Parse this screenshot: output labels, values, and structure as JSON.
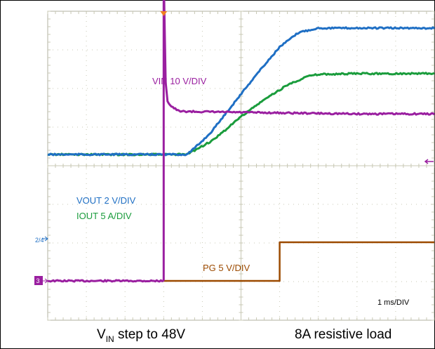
{
  "chart_data": {
    "type": "line",
    "title": "",
    "time_scale": "1 ms/DIV",
    "xlim": [
      0,
      10
    ],
    "xunit": "ms (divisions)",
    "grid": true,
    "series": [
      {
        "name": "VIN 10 V/DIV",
        "channel": "1",
        "color": "#9a1fa0",
        "x": [
          0,
          3.0,
          3.0,
          3.05,
          3.1,
          3.2,
          3.4,
          5,
          7,
          8,
          10
        ],
        "y": [
          0,
          0,
          6.2,
          4.0,
          3.6,
          3.5,
          3.4,
          3.38,
          3.36,
          3.35,
          3.35
        ]
      },
      {
        "name": "VOUT 2 V/DIV",
        "channel": "2",
        "color": "#1f6fc4",
        "x": [
          0,
          3.6,
          3.8,
          4.2,
          4.8,
          5.4,
          6.0,
          6.5,
          7.0,
          8.0,
          10
        ],
        "y": [
          2.0,
          2.0,
          2.15,
          2.5,
          3.2,
          3.9,
          4.55,
          4.9,
          5.0,
          5.0,
          5.0
        ]
      },
      {
        "name": "IOUT 5 A/DIV",
        "channel": "4",
        "color": "#1a9c3c",
        "x": [
          0,
          3.6,
          3.8,
          4.3,
          5.0,
          5.6,
          6.2,
          6.7,
          7.0,
          8.0,
          10
        ],
        "y": [
          2.0,
          2.0,
          2.1,
          2.35,
          2.9,
          3.3,
          3.65,
          3.85,
          3.9,
          3.92,
          3.92
        ]
      },
      {
        "name": "PG 5 V/DIV",
        "channel": "3",
        "color": "#9c4a00",
        "x": [
          3.0,
          6.0,
          6.0,
          10
        ],
        "y": [
          0,
          0,
          1.0,
          1.0
        ]
      }
    ]
  },
  "labels": {
    "vin": "VIN 10 V/DIV",
    "vout": "VOUT 2 V/DIV",
    "iout": "IOUT 5 A/DIV",
    "pg": "PG 5 V/DIV",
    "timebase": "1 ms/DIV",
    "ch24": "2/4",
    "ch3": "3"
  },
  "captions": {
    "left_main": "V",
    "left_sub": "IN",
    "left_rest": " step to 48V",
    "right": "8A resistive load"
  },
  "colors": {
    "vin": "#9a1fa0",
    "vout": "#1f6fc4",
    "iout": "#1a9c3c",
    "pg": "#9c4a00",
    "trigger": "#f08020",
    "grid": "#c8c8b4"
  }
}
